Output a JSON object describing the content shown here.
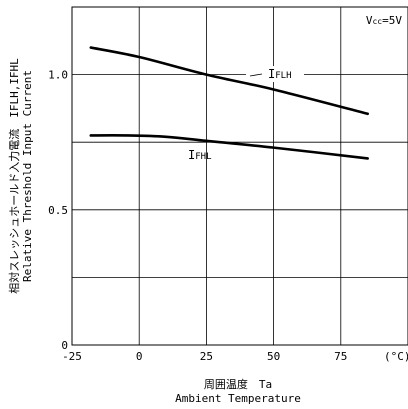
{
  "chart_data": {
    "type": "line",
    "xlabel_jp": "周囲温度　Ta",
    "xlabel_en": "Ambient Temperature",
    "ylabel_jp": "相対スレッシュホールド入力電流　IFLH,IFHL",
    "ylabel_en": "Relative Threshold Input Current",
    "x_unit": "(°C)",
    "xlim": [
      -25,
      100
    ],
    "ylim": [
      0,
      1.25
    ],
    "x_ticks": [
      -25,
      0,
      25,
      50,
      75
    ],
    "x_tick_labels": [
      "-25",
      "0",
      "25",
      "50",
      "75"
    ],
    "y_ticks": [
      0,
      0.5,
      1.0
    ],
    "y_tick_labels": [
      "0",
      "0.5",
      "1.0"
    ],
    "grid_x": [
      0,
      25,
      50,
      75
    ],
    "grid_y": [
      0.25,
      0.5,
      0.75,
      1.0
    ],
    "condition": "Vcc=5V",
    "series": [
      {
        "name": "IFLH",
        "x": [
          -18,
          0,
          25,
          50,
          85
        ],
        "y": [
          1.1,
          1.065,
          1.0,
          0.945,
          0.855
        ]
      },
      {
        "name": "IFHL",
        "x": [
          -18,
          -5,
          10,
          25,
          50,
          85
        ],
        "y": [
          0.775,
          0.775,
          0.77,
          0.755,
          0.73,
          0.69
        ]
      }
    ]
  }
}
